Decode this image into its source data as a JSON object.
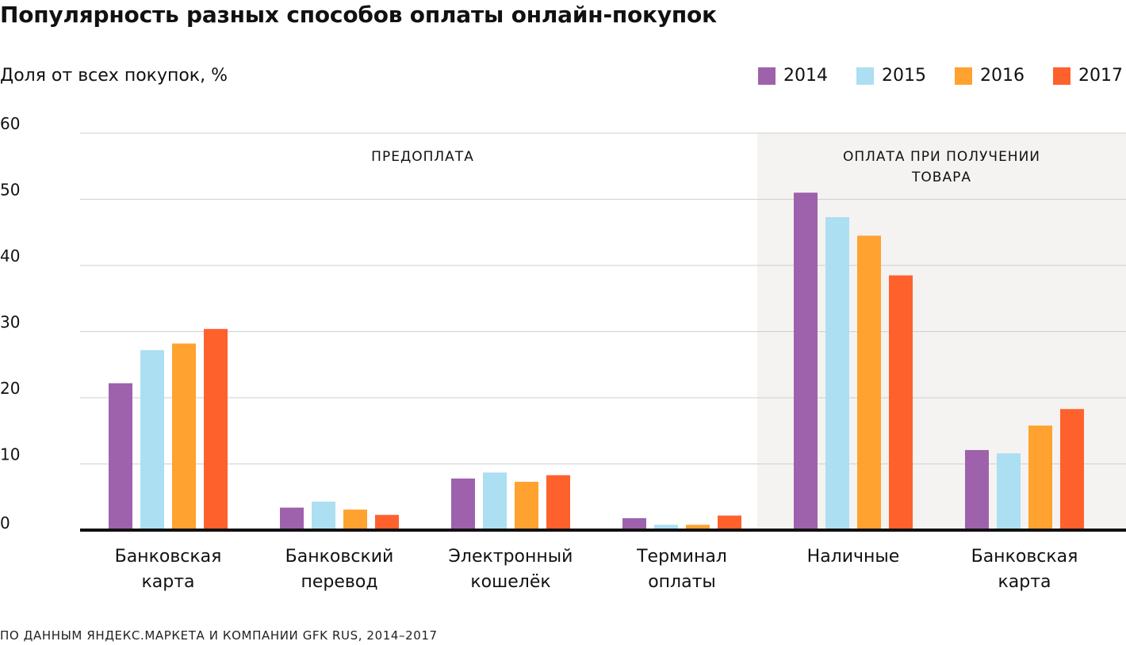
{
  "title": "Популярность разных способов оплаты онлайн-покупок",
  "y_label": "Доля от всех покупок, %",
  "source": "ПО ДАННЫМ ЯНДЕКС.МАРКЕТА И КОМПАНИИ GFK RUS, 2014–2017",
  "legend": [
    {
      "label": "2014",
      "color": "#9E62AC"
    },
    {
      "label": "2015",
      "color": "#ABDFF1"
    },
    {
      "label": "2016",
      "color": "#FFA22F"
    },
    {
      "label": "2017",
      "color": "#FF612D"
    }
  ],
  "chart_data": {
    "type": "bar",
    "categories": [
      [
        "Банковская",
        "карта"
      ],
      [
        "Банковский",
        "перевод"
      ],
      [
        "Электронный",
        "кошелёк"
      ],
      [
        "Терминал",
        "оплаты"
      ],
      [
        "Наличные"
      ],
      [
        "Банковская",
        "карта"
      ]
    ],
    "groups": [
      {
        "label": [
          "ПРЕДОПЛАТА"
        ],
        "categories": [
          0,
          1,
          2,
          3
        ],
        "shaded": false
      },
      {
        "label": [
          "ОПЛАТА ПРИ ПОЛУЧЕНИИ",
          "ТОВАРА"
        ],
        "categories": [
          4,
          5
        ],
        "shaded": true
      }
    ],
    "series": [
      {
        "name": "2014",
        "color": "#9E62AC",
        "values": [
          22.2,
          3.4,
          7.8,
          1.8,
          51.0,
          12.1
        ]
      },
      {
        "name": "2015",
        "color": "#ABDFF1",
        "values": [
          27.2,
          4.3,
          8.7,
          0.8,
          47.3,
          11.6
        ]
      },
      {
        "name": "2016",
        "color": "#FFA22F",
        "values": [
          28.2,
          3.1,
          7.3,
          0.8,
          44.5,
          15.8
        ]
      },
      {
        "name": "2017",
        "color": "#FF612D",
        "values": [
          30.4,
          2.3,
          8.3,
          2.2,
          38.5,
          18.3
        ]
      }
    ],
    "ylim": [
      0,
      60
    ],
    "yticks": [
      0,
      10,
      20,
      30,
      40,
      50,
      60
    ],
    "grid": true,
    "legend_position": "top-right",
    "shade_color": "#F4F3F1"
  }
}
